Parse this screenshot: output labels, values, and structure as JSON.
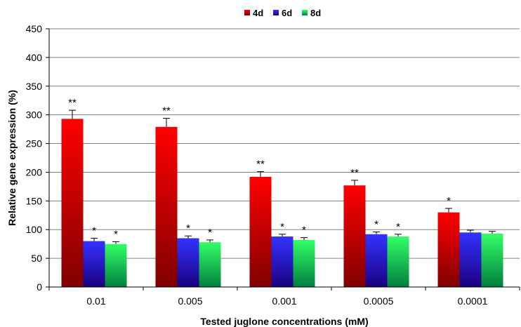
{
  "chart_data": {
    "type": "bar",
    "title": "",
    "xlabel": "Tested juglone concentrations (mM)",
    "ylabel": "Relative gene expression (%)",
    "ylim": [
      0,
      450
    ],
    "yticks": [
      0,
      50,
      100,
      150,
      200,
      250,
      300,
      350,
      400,
      450
    ],
    "grid": "horizontal",
    "legend_position": "top",
    "categories": [
      "0.01",
      "0.005",
      "0.001",
      "0.0005",
      "0.0001"
    ],
    "series": [
      {
        "name": "4d",
        "color_top": "#ff0000",
        "color_bottom": "#800000",
        "values": [
          293,
          279,
          192,
          177,
          130
        ],
        "errors": [
          15,
          15,
          9,
          9,
          7
        ],
        "significance": [
          "**",
          "**",
          "**",
          "**",
          "*"
        ]
      },
      {
        "name": "6d",
        "color_top": "#3333ff",
        "color_bottom": "#1a0080",
        "values": [
          80,
          85,
          88,
          92,
          95
        ],
        "errors": [
          5,
          4,
          4,
          4,
          4
        ],
        "significance": [
          "*",
          "*",
          "*",
          "*",
          ""
        ]
      },
      {
        "name": "8d",
        "color_top": "#33ff66",
        "color_bottom": "#007f3f",
        "values": [
          75,
          78,
          82,
          88,
          93
        ],
        "errors": [
          4,
          4,
          4,
          4,
          4
        ],
        "significance": [
          "*",
          "*",
          "*",
          "*",
          ""
        ]
      }
    ]
  }
}
